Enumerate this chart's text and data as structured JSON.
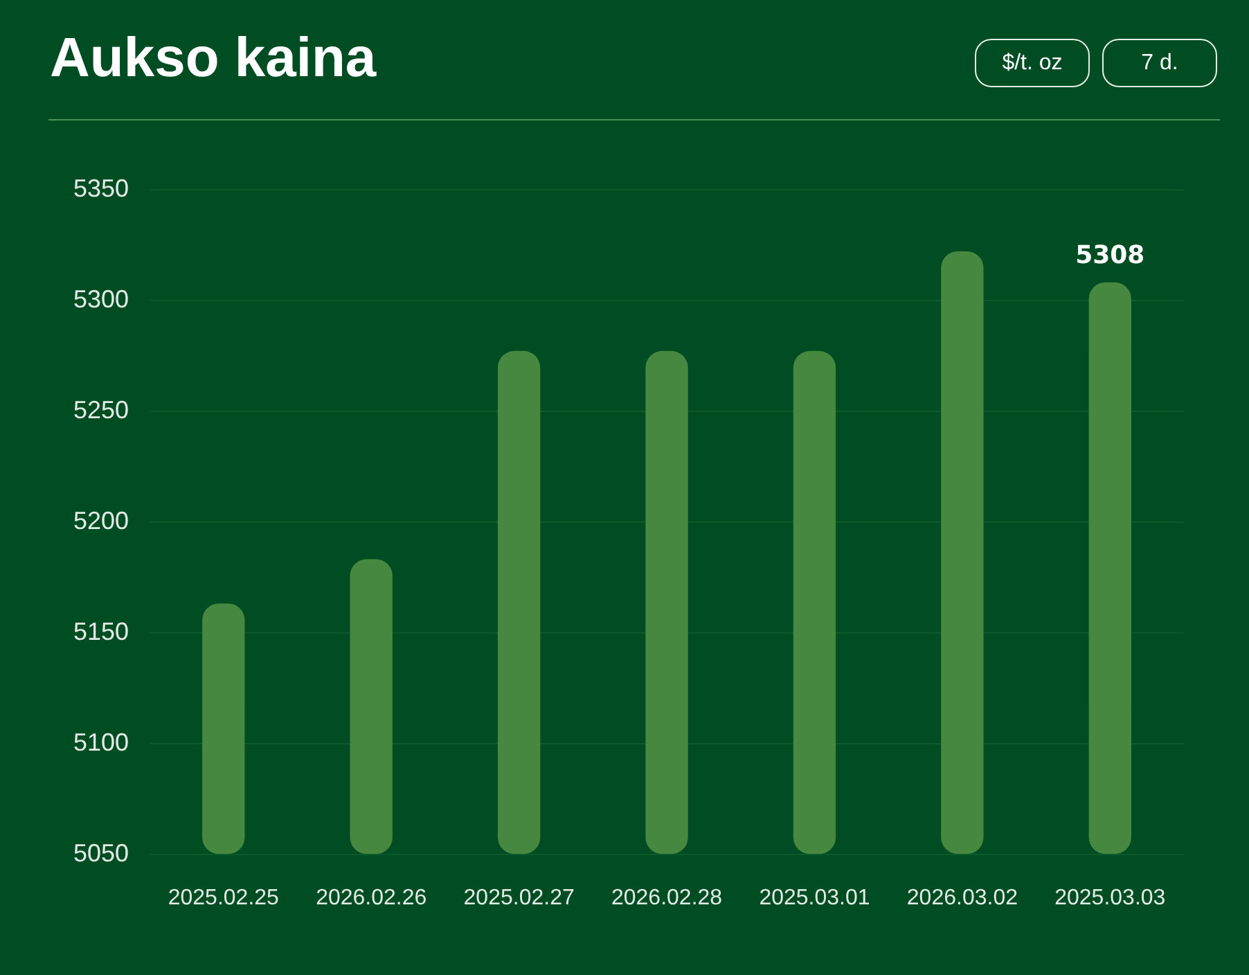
{
  "chart_data": {
    "type": "bar",
    "title": "Aukso kaina",
    "annotations": [
      "$/t. oz",
      "7 d."
    ],
    "categories": [
      "2025.02.25",
      "2026.02.26",
      "2025.02.27",
      "2026.02.28",
      "2025.03.01",
      "2026.03.02",
      "2025.03.03"
    ],
    "values": [
      5163,
      5183,
      5277,
      5277,
      5277,
      5322,
      5308
    ],
    "value_labels": [
      null,
      null,
      null,
      null,
      null,
      null,
      "5308"
    ],
    "color": "#46883f",
    "ylim": [
      5050,
      5350
    ],
    "yticks": [
      5050,
      5100,
      5150,
      5200,
      5250,
      5300,
      5350
    ],
    "grid": "y"
  }
}
